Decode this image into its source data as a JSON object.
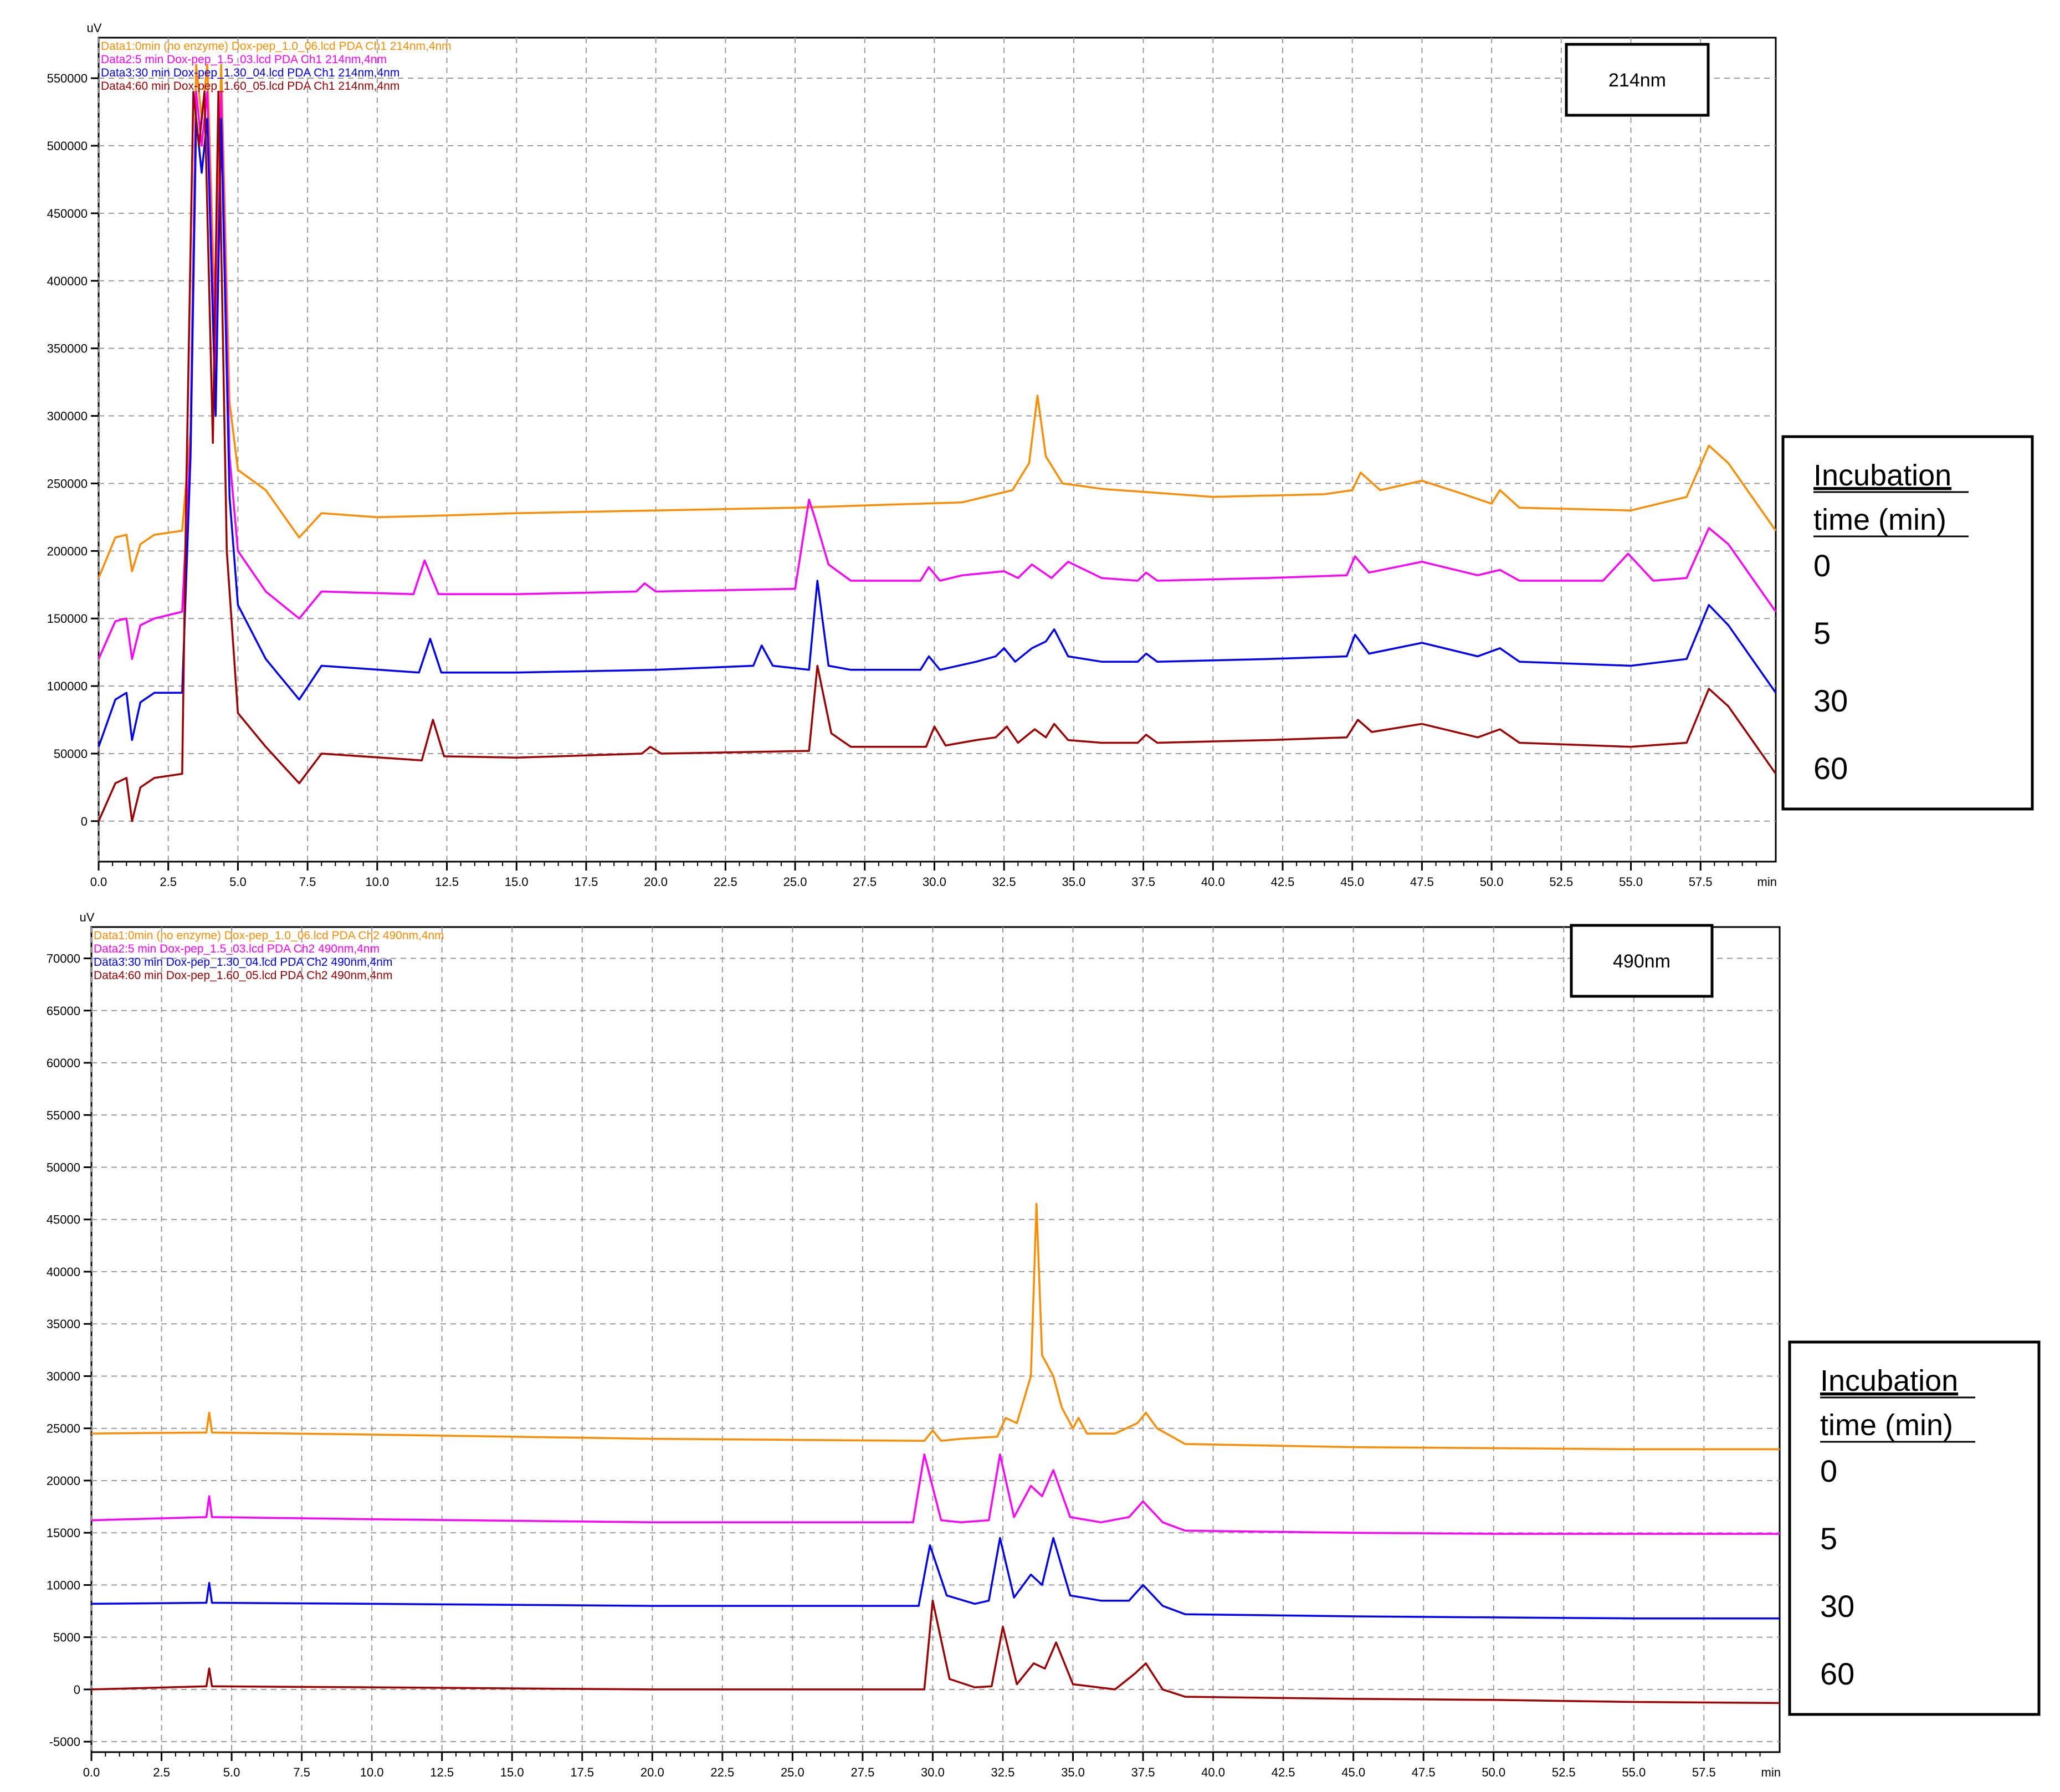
{
  "chart_data": [
    {
      "type": "line",
      "y_unit": "uV",
      "x_unit": "min",
      "xlim": [
        0,
        60.2
      ],
      "ylim": [
        -30000,
        580000
      ],
      "y_ticks": [
        0,
        50000,
        100000,
        150000,
        200000,
        250000,
        300000,
        350000,
        400000,
        450000,
        500000,
        550000
      ],
      "y_tick_labels": [
        "0",
        "50000",
        "100000",
        "150000",
        "200000",
        "250000",
        "300000",
        "350000",
        "400000",
        "450000",
        "500000",
        "550000"
      ],
      "x_ticks": [
        0,
        2.5,
        5,
        7.5,
        10,
        12.5,
        15,
        17.5,
        20,
        22.5,
        25,
        27.5,
        30,
        32.5,
        35,
        37.5,
        40,
        42.5,
        45,
        47.5,
        50,
        52.5,
        55,
        57.5
      ],
      "x_tick_labels": [
        "0.0",
        "2.5",
        "5.0",
        "7.5",
        "10.0",
        "12.5",
        "15.0",
        "17.5",
        "20.0",
        "22.5",
        "25.0",
        "27.5",
        "30.0",
        "32.5",
        "35.0",
        "37.5",
        "40.0",
        "42.5",
        "45.0",
        "47.5",
        "50.0",
        "52.5",
        "55.0",
        "57.5"
      ],
      "grid": true,
      "wavelength_label": "214nm",
      "legend_box": {
        "title_line1": "Incubation",
        "title_line2": "time (min)",
        "entries": [
          "0",
          "5",
          "30",
          "60"
        ]
      },
      "series": [
        {
          "name": "Data1:0min (no enzyme) Dox-pep_1.0_06.lcd PDA Ch1 214nm,4nm",
          "color": "#ff8c00",
          "x": [
            0,
            0.6,
            1.0,
            1.2,
            1.5,
            2.0,
            3.0,
            3.3,
            3.5,
            3.7,
            3.9,
            4.2,
            4.4,
            4.7,
            5.0,
            6.0,
            7.2,
            8.0,
            10.0,
            12.0,
            15.0,
            20.0,
            25.0,
            28.0,
            31.0,
            32.8,
            33.4,
            33.7,
            34.0,
            34.6,
            36.0,
            40.0,
            44.0,
            45.0,
            45.3,
            46.0,
            47.5,
            49.0,
            50.0,
            50.3,
            51.0,
            55.0,
            57.0,
            57.8,
            58.5,
            60.2
          ],
          "y": [
            180000,
            210000,
            212000,
            185000,
            205000,
            212000,
            215000,
            290000,
            560000,
            520000,
            560000,
            360000,
            560000,
            310000,
            260000,
            245000,
            210000,
            228000,
            225000,
            226000,
            228000,
            230000,
            232000,
            234000,
            236000,
            245000,
            265000,
            315000,
            270000,
            250000,
            246000,
            240000,
            242000,
            245000,
            258000,
            245000,
            252000,
            242000,
            235000,
            245000,
            232000,
            230000,
            240000,
            278000,
            265000,
            215000
          ]
        },
        {
          "name": "Data2:5 min Dox-pep_1.5_03.lcd PDA Ch1 214nm,4nm",
          "color": "#ff00ff",
          "x": [
            0,
            0.6,
            1.0,
            1.2,
            1.5,
            2.0,
            3.0,
            3.3,
            3.5,
            3.7,
            3.9,
            4.2,
            4.4,
            4.7,
            5.0,
            6.0,
            7.2,
            8.0,
            11.3,
            11.7,
            12.2,
            15.0,
            19.3,
            19.6,
            20.0,
            25.0,
            25.5,
            25.7,
            26.2,
            27.0,
            29.5,
            29.8,
            30.2,
            31.0,
            32.5,
            33.0,
            33.5,
            34.2,
            34.8,
            36.0,
            37.3,
            37.6,
            38.0,
            42.0,
            44.8,
            45.1,
            45.6,
            47.5,
            49.5,
            50.3,
            51.0,
            54.0,
            54.9,
            55.8,
            57.0,
            57.8,
            58.5,
            60.2
          ],
          "y": [
            120000,
            148000,
            150000,
            120000,
            145000,
            150000,
            155000,
            280000,
            540000,
            500000,
            540000,
            320000,
            540000,
            270000,
            200000,
            170000,
            150000,
            170000,
            168000,
            193000,
            168000,
            168000,
            170000,
            176000,
            170000,
            172000,
            238000,
            225000,
            190000,
            178000,
            178000,
            188000,
            178000,
            182000,
            185000,
            180000,
            190000,
            180000,
            192000,
            180000,
            178000,
            184000,
            178000,
            180000,
            182000,
            196000,
            184000,
            192000,
            182000,
            186000,
            178000,
            178000,
            198000,
            178000,
            180000,
            217000,
            205000,
            155000
          ]
        },
        {
          "name": "Data3:30 min Dox-pep_1.30_04.lcd PDA Ch1 214nm,4nm",
          "color": "#0000ff",
          "x": [
            0,
            0.6,
            1.0,
            1.2,
            1.5,
            2.0,
            3.0,
            3.3,
            3.5,
            3.7,
            3.9,
            4.2,
            4.4,
            4.7,
            5.0,
            6.0,
            7.2,
            8.0,
            11.5,
            11.9,
            12.3,
            15.0,
            20.0,
            23.5,
            23.8,
            24.2,
            25.5,
            25.8,
            26.2,
            27.0,
            29.5,
            29.8,
            30.2,
            31.5,
            32.2,
            32.5,
            32.9,
            33.5,
            34.0,
            34.3,
            34.8,
            36.0,
            37.3,
            37.6,
            38.0,
            42.0,
            44.8,
            45.1,
            45.6,
            47.5,
            49.5,
            50.3,
            51.0,
            55.0,
            57.0,
            57.8,
            58.5,
            60.2
          ],
          "y": [
            55000,
            90000,
            95000,
            60000,
            88000,
            95000,
            95000,
            270000,
            520000,
            480000,
            520000,
            300000,
            520000,
            240000,
            160000,
            120000,
            90000,
            115000,
            110000,
            135000,
            110000,
            110000,
            112000,
            115000,
            130000,
            115000,
            112000,
            178000,
            115000,
            112000,
            112000,
            122000,
            112000,
            118000,
            122000,
            128000,
            118000,
            128000,
            133000,
            142000,
            122000,
            118000,
            118000,
            124000,
            118000,
            120000,
            122000,
            138000,
            124000,
            132000,
            122000,
            128000,
            118000,
            115000,
            120000,
            160000,
            145000,
            95000
          ]
        },
        {
          "name": "Data4:60 min Dox-pep_1.60_05.lcd PDA Ch1 214nm,4nm",
          "color": "#a00000",
          "x": [
            0,
            0.6,
            1.0,
            1.2,
            1.5,
            2.0,
            3.0,
            3.15,
            3.4,
            3.6,
            3.8,
            4.1,
            4.3,
            4.6,
            5.0,
            6.0,
            7.2,
            8.0,
            11.6,
            12.0,
            12.4,
            15.0,
            19.5,
            19.8,
            20.2,
            25.5,
            25.8,
            26.3,
            27.0,
            29.7,
            30.0,
            30.4,
            31.5,
            32.2,
            32.6,
            33.0,
            33.6,
            34.0,
            34.3,
            34.8,
            36.0,
            37.3,
            37.6,
            38.0,
            42.0,
            44.8,
            45.2,
            45.7,
            47.5,
            49.5,
            50.3,
            51.0,
            55.0,
            57.0,
            57.8,
            58.5,
            60.2
          ],
          "y": [
            0,
            28000,
            32000,
            0,
            25000,
            32000,
            35000,
            250000,
            540000,
            500000,
            540000,
            280000,
            540000,
            200000,
            80000,
            55000,
            28000,
            50000,
            45000,
            75000,
            48000,
            47000,
            50000,
            55000,
            50000,
            52000,
            115000,
            65000,
            55000,
            55000,
            70000,
            56000,
            60000,
            62000,
            70000,
            58000,
            68000,
            62000,
            72000,
            60000,
            58000,
            58000,
            64000,
            58000,
            60000,
            62000,
            75000,
            66000,
            72000,
            62000,
            68000,
            58000,
            55000,
            58000,
            98000,
            85000,
            35000
          ]
        }
      ]
    },
    {
      "type": "line",
      "y_unit": "uV",
      "x_unit": "min",
      "xlim": [
        0,
        60.2
      ],
      "ylim": [
        -6000,
        73000
      ],
      "y_ticks": [
        -5000,
        0,
        5000,
        10000,
        15000,
        20000,
        25000,
        30000,
        35000,
        40000,
        45000,
        50000,
        55000,
        60000,
        65000,
        70000
      ],
      "y_tick_labels": [
        "-5000",
        "0",
        "5000",
        "10000",
        "15000",
        "20000",
        "25000",
        "30000",
        "35000",
        "40000",
        "45000",
        "50000",
        "55000",
        "60000",
        "65000",
        "70000"
      ],
      "x_ticks": [
        0,
        2.5,
        5,
        7.5,
        10,
        12.5,
        15,
        17.5,
        20,
        22.5,
        25,
        27.5,
        30,
        32.5,
        35,
        37.5,
        40,
        42.5,
        45,
        47.5,
        50,
        52.5,
        55,
        57.5
      ],
      "x_tick_labels": [
        "0.0",
        "2.5",
        "5.0",
        "7.5",
        "10.0",
        "12.5",
        "15.0",
        "17.5",
        "20.0",
        "22.5",
        "25.0",
        "27.5",
        "30.0",
        "32.5",
        "35.0",
        "37.5",
        "40.0",
        "42.5",
        "45.0",
        "47.5",
        "50.0",
        "52.5",
        "55.0",
        "57.5"
      ],
      "grid": true,
      "wavelength_label": "490nm",
      "legend_box": {
        "title_line1": "Incubation",
        "title_line2": "time (min)",
        "entries": [
          "0",
          "5",
          "30",
          "60"
        ]
      },
      "series": [
        {
          "name": "Data1:0min (no enzyme) Dox-pep_1.0_06.lcd PDA Ch2 490nm,4nm",
          "color": "#ff8c00",
          "x": [
            0,
            4.1,
            4.2,
            4.3,
            10.0,
            20.0,
            29.7,
            30.0,
            30.3,
            31.0,
            32.3,
            32.6,
            33.0,
            33.5,
            33.7,
            33.9,
            34.3,
            34.6,
            35.0,
            35.2,
            35.5,
            36.5,
            37.3,
            37.6,
            38.0,
            39.0,
            45.0,
            50.0,
            55.0,
            60.2
          ],
          "y": [
            24500,
            24600,
            26500,
            24600,
            24400,
            24000,
            23800,
            24800,
            23800,
            24000,
            24200,
            26000,
            25500,
            30000,
            46500,
            32000,
            30000,
            27000,
            25000,
            26000,
            24500,
            24500,
            25500,
            26500,
            25000,
            23500,
            23200,
            23100,
            23000,
            23000
          ]
        },
        {
          "name": "Data2:5 min Dox-pep_1.5_03.lcd PDA Ch2 490nm,4nm",
          "color": "#ff00ff",
          "x": [
            0,
            4.1,
            4.2,
            4.3,
            10.0,
            20.0,
            29.3,
            29.7,
            30.3,
            31.0,
            32.0,
            32.4,
            32.9,
            33.5,
            33.9,
            34.3,
            34.9,
            36.0,
            37.0,
            37.5,
            38.2,
            39.0,
            45.0,
            50.0,
            55.0,
            60.2
          ],
          "y": [
            16200,
            16500,
            18500,
            16500,
            16300,
            16000,
            16000,
            22500,
            16200,
            16000,
            16200,
            22500,
            16500,
            19500,
            18500,
            21000,
            16500,
            16000,
            16500,
            18000,
            16000,
            15200,
            15000,
            14900,
            14900,
            14900
          ]
        },
        {
          "name": "Data3:30 min Dox-pep_1.30_04.lcd PDA Ch2 490nm,4nm",
          "color": "#0000ff",
          "x": [
            0,
            4.1,
            4.2,
            4.3,
            10.0,
            20.0,
            29.5,
            29.9,
            30.5,
            31.5,
            32.0,
            32.4,
            32.9,
            33.5,
            33.9,
            34.3,
            34.9,
            36.0,
            37.0,
            37.5,
            38.2,
            39.0,
            45.0,
            50.0,
            55.0,
            60.2
          ],
          "y": [
            8200,
            8300,
            10200,
            8300,
            8200,
            8000,
            8000,
            13800,
            9000,
            8200,
            8500,
            14500,
            8800,
            11000,
            10000,
            14500,
            9000,
            8500,
            8500,
            10000,
            8000,
            7200,
            7000,
            6900,
            6800,
            6800
          ]
        },
        {
          "name": "Data4:60 min Dox-pep_1.60_05.lcd PDA Ch2 490nm,4nm",
          "color": "#a00000",
          "x": [
            0,
            4.1,
            4.2,
            4.3,
            10.0,
            20.0,
            29.7,
            30.0,
            30.6,
            31.5,
            32.1,
            32.5,
            33.0,
            33.6,
            34.0,
            34.4,
            35.0,
            36.5,
            37.2,
            37.6,
            38.2,
            39.0,
            45.0,
            50.0,
            55.0,
            60.2
          ],
          "y": [
            0,
            300,
            2000,
            300,
            200,
            0,
            0,
            8500,
            1000,
            200,
            300,
            6000,
            500,
            2500,
            2000,
            4500,
            500,
            0,
            1500,
            2500,
            0,
            -700,
            -900,
            -1000,
            -1200,
            -1300
          ]
        }
      ]
    }
  ]
}
